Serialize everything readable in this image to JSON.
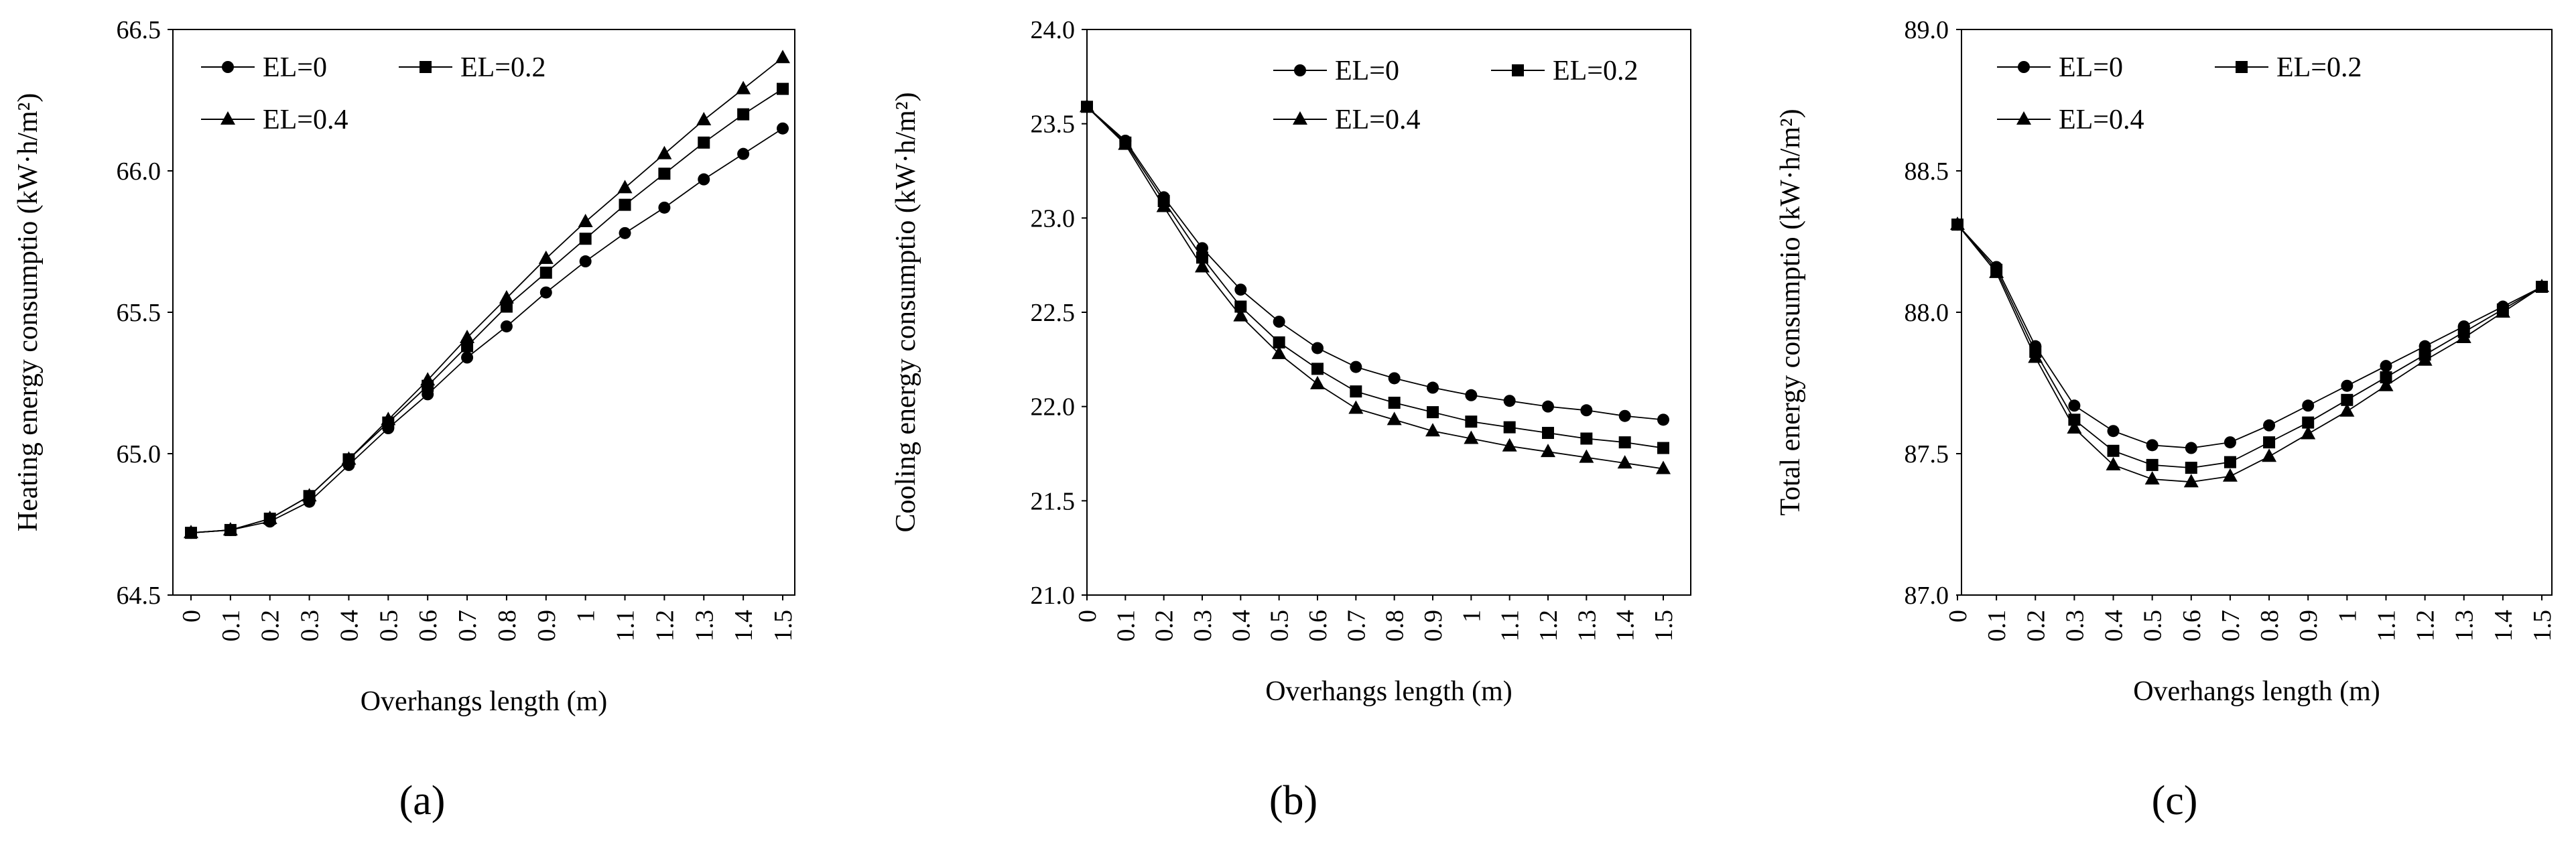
{
  "chart_data": [
    {
      "type": "line",
      "panel_label": "(a)",
      "xlabel": "Overhangs length (m)",
      "ylabel": "Heating energy consumptio (kW·h/m²)",
      "ylim": [
        64.5,
        66.5
      ],
      "yticks": [
        "64.5",
        "65.0",
        "65.5",
        "66.0",
        "66.5"
      ],
      "categories": [
        "0",
        "0.1",
        "0.2",
        "0.3",
        "0.4",
        "0.5",
        "0.6",
        "0.7",
        "0.8",
        "0.9",
        "1",
        "1.1",
        "1.2",
        "1.3",
        "1.4",
        "1.5"
      ],
      "grid": false,
      "legend": "top-left",
      "series": [
        {
          "name": "EL=0",
          "marker": "circle",
          "values": [
            64.72,
            64.73,
            64.76,
            64.83,
            64.96,
            65.09,
            65.21,
            65.34,
            65.45,
            65.57,
            65.68,
            65.78,
            65.87,
            65.97,
            66.06,
            66.15
          ]
        },
        {
          "name": "EL=0.2",
          "marker": "square",
          "values": [
            64.72,
            64.73,
            64.77,
            64.85,
            64.98,
            65.11,
            65.24,
            65.38,
            65.52,
            65.64,
            65.76,
            65.88,
            65.99,
            66.1,
            66.2,
            66.29
          ]
        },
        {
          "name": "EL=0.4",
          "marker": "triangle",
          "values": [
            64.72,
            64.73,
            64.77,
            64.85,
            64.98,
            65.12,
            65.26,
            65.41,
            65.55,
            65.69,
            65.82,
            65.94,
            66.06,
            66.18,
            66.29,
            66.4
          ]
        }
      ]
    },
    {
      "type": "line",
      "panel_label": "(b)",
      "xlabel": "Overhangs length (m)",
      "ylabel": "Cooling energy consumptio (kW·h/m²)",
      "ylim": [
        21.0,
        24.0
      ],
      "yticks": [
        "21.0",
        "21.5",
        "22.0",
        "22.5",
        "23.0",
        "23.5",
        "24.0"
      ],
      "categories": [
        "0",
        "0.1",
        "0.2",
        "0.3",
        "0.4",
        "0.5",
        "0.6",
        "0.7",
        "0.8",
        "0.9",
        "1",
        "1.1",
        "1.2",
        "1.3",
        "1.4",
        "1.5"
      ],
      "grid": false,
      "legend": "top-right",
      "series": [
        {
          "name": "EL=0",
          "marker": "circle",
          "values": [
            23.59,
            23.41,
            23.11,
            22.84,
            22.62,
            22.45,
            22.31,
            22.21,
            22.15,
            22.1,
            22.06,
            22.03,
            22.0,
            21.98,
            21.95,
            21.93
          ]
        },
        {
          "name": "EL=0.2",
          "marker": "square",
          "values": [
            23.59,
            23.4,
            23.09,
            22.79,
            22.53,
            22.34,
            22.2,
            22.08,
            22.02,
            21.97,
            21.92,
            21.89,
            21.86,
            21.83,
            21.81,
            21.78
          ]
        },
        {
          "name": "EL=0.4",
          "marker": "triangle",
          "values": [
            23.59,
            23.39,
            23.06,
            22.74,
            22.48,
            22.28,
            22.12,
            21.99,
            21.93,
            21.87,
            21.83,
            21.79,
            21.76,
            21.73,
            21.7,
            21.67
          ]
        }
      ]
    },
    {
      "type": "line",
      "panel_label": "(c)",
      "xlabel": "Overhangs length (m)",
      "ylabel": "Total energy consumptio (kW·h/m²)",
      "ylim": [
        87.0,
        89.0
      ],
      "yticks": [
        "87.0",
        "87.5",
        "88.0",
        "88.5",
        "89.0"
      ],
      "categories": [
        "0",
        "0.1",
        "0.2",
        "0.3",
        "0.4",
        "0.5",
        "0.6",
        "0.7",
        "0.8",
        "0.9",
        "1",
        "1.1",
        "1.2",
        "1.3",
        "1.4",
        "1.5"
      ],
      "grid": false,
      "legend": "top-left",
      "series": [
        {
          "name": "EL=0",
          "marker": "circle",
          "values": [
            88.31,
            88.16,
            87.88,
            87.67,
            87.58,
            87.53,
            87.52,
            87.54,
            87.6,
            87.67,
            87.74,
            87.81,
            87.88,
            87.95,
            88.02,
            88.09
          ]
        },
        {
          "name": "EL=0.2",
          "marker": "square",
          "values": [
            88.31,
            88.15,
            87.86,
            87.62,
            87.51,
            87.46,
            87.45,
            87.47,
            87.54,
            87.61,
            87.69,
            87.77,
            87.85,
            87.93,
            88.01,
            88.09
          ]
        },
        {
          "name": "EL=0.4",
          "marker": "triangle",
          "values": [
            88.31,
            88.14,
            87.84,
            87.59,
            87.46,
            87.41,
            87.4,
            87.42,
            87.49,
            87.57,
            87.65,
            87.74,
            87.83,
            87.91,
            88.0,
            88.09
          ]
        }
      ]
    }
  ]
}
